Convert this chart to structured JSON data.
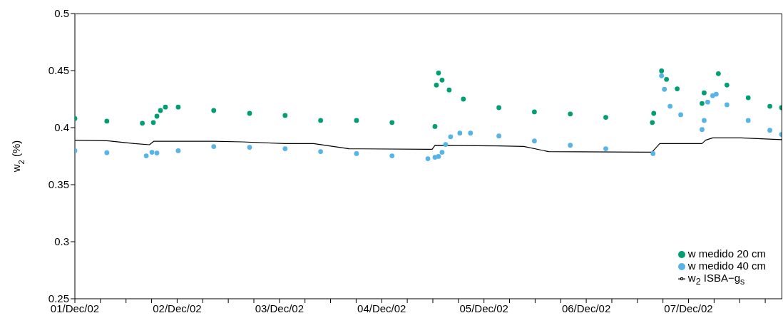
{
  "chart_data": {
    "type": "scatter",
    "ylabel": "w$_{2}$ (%)",
    "xlim": [
      "--12-01T00:00",
      "--12-07T22:00"
    ],
    "xticks": [
      {
        "value": "--12-01",
        "label": "01/Dec/02"
      },
      {
        "value": "--12-01T06:00",
        "label": null
      },
      {
        "value": "--12-01T12:00",
        "label": null
      },
      {
        "value": "--12-01T18:00",
        "label": null
      },
      {
        "value": "--12-02",
        "label": "02/Dec/02"
      },
      {
        "value": "--12-02T06:00",
        "label": null
      },
      {
        "value": "--12-02T12:00",
        "label": null
      },
      {
        "value": "--12-02T18:00",
        "label": null
      },
      {
        "value": "--12-03",
        "label": "03/Dec/02"
      },
      {
        "value": "--12-03T06:00",
        "label": null
      },
      {
        "value": "--12-03T12:00",
        "label": null
      },
      {
        "value": "--12-03T18:00",
        "label": null
      },
      {
        "value": "--12-04",
        "label": "04/Dec/02"
      },
      {
        "value": "--12-04T06:00",
        "label": null
      },
      {
        "value": "--12-04T12:00",
        "label": null
      },
      {
        "value": "--12-04T18:00",
        "label": null
      },
      {
        "value": "--12-05",
        "label": "05/Dec/02"
      },
      {
        "value": "--12-05T06:00",
        "label": null
      },
      {
        "value": "--12-05T12:00",
        "label": null
      },
      {
        "value": "--12-05T18:00",
        "label": null
      },
      {
        "value": "--12-06",
        "label": "06/Dec/02"
      },
      {
        "value": "--12-06T06:00",
        "label": null
      },
      {
        "value": "--12-06T12:00",
        "label": null
      },
      {
        "value": "--12-06T18:00",
        "label": null
      },
      {
        "value": "--12-07",
        "label": "07/Dec/02"
      },
      {
        "value": "--12-07T06:00",
        "label": null
      },
      {
        "value": "--12-07T12:00",
        "label": null
      },
      {
        "value": "--12-07T18:00",
        "label": null
      }
    ],
    "ylim": [
      0.25,
      0.5
    ],
    "yticks": [
      0.25,
      0.3,
      0.35,
      0.4,
      0.45,
      0.5
    ],
    "grid": false,
    "legend": "bottom right",
    "series": [
      {
        "name": "w$_{2}$ ISBA−g$_{s}$",
        "type": "line",
        "marker": "none",
        "line_style": "solid",
        "color": "#000000",
        "x": [
          "--12-01T00:00",
          "--12-01T07:30",
          "--12-01T14:00",
          "--12-01T17:30",
          "--12-01T18:30",
          "--12-02T08:30",
          "--12-02T15:20",
          "--12-03T01:20",
          "--12-03T08:00",
          "--12-03T16:20",
          "--12-04T10:50",
          "--12-04T11:50",
          "--12-04T12:30",
          "--12-05T03:30",
          "--12-05T09:20",
          "--12-05T15:10",
          "--12-06T12:55",
          "--12-06T15:25",
          "--12-06T17:15",
          "--12-07T03:10",
          "--12-07T04:00",
          "--12-07T05:40",
          "--12-07T12:20",
          "--12-07T21:50"
        ],
        "values": [
          0.389,
          0.3885,
          0.386,
          0.385,
          0.388,
          0.388,
          0.3875,
          0.386,
          0.386,
          0.3815,
          0.381,
          0.381,
          0.3845,
          0.384,
          0.3835,
          0.379,
          0.3785,
          0.3785,
          0.386,
          0.386,
          0.389,
          0.391,
          0.391,
          0.3895
        ]
      },
      {
        "name": "w medido 20 cm",
        "marker": "circle",
        "color": "#009e73",
        "x": [
          "--12-01T00:00",
          "--12-01T07:30",
          "--12-01T15:50",
          "--12-01T18:25",
          "--12-01T19:15",
          "--12-01T20:05",
          "--12-01T21:15",
          "--12-02T00:15",
          "--12-02T08:35",
          "--12-02T17:00",
          "--12-03T01:20",
          "--12-03T09:40",
          "--12-03T18:05",
          "--12-04T02:25",
          "--12-04T12:30",
          "--12-04T12:50",
          "--12-04T13:20",
          "--12-04T14:10",
          "--12-04T15:50",
          "--12-04T19:10",
          "--12-05T03:30",
          "--12-05T11:50",
          "--12-05T20:15",
          "--12-06T04:35",
          "--12-06T15:30",
          "--12-06T15:50",
          "--12-06T17:40",
          "--12-06T18:50",
          "--12-06T21:20",
          "--12-07T03:10",
          "--12-07T03:40",
          "--12-07T07:00",
          "--12-07T09:00",
          "--12-07T14:00",
          "--12-07T19:05",
          "--12-07T21:50"
        ],
        "values": [
          0.408,
          0.4057,
          0.4039,
          0.4045,
          0.41,
          0.415,
          0.418,
          0.418,
          0.415,
          0.4125,
          0.4107,
          0.4063,
          0.4063,
          0.4045,
          0.401,
          0.4373,
          0.4479,
          0.4417,
          0.433,
          0.425,
          0.4175,
          0.4138,
          0.412,
          0.409,
          0.4045,
          0.4125,
          0.4497,
          0.4423,
          0.434,
          0.4212,
          0.4305,
          0.4473,
          0.4373,
          0.4262,
          0.4187,
          0.4175
        ]
      },
      {
        "name": "w medido 40 cm",
        "marker": "circle",
        "color": "#56b4e9",
        "x": [
          "--12-01T00:00",
          "--12-01T07:30",
          "--12-01T16:45",
          "--12-01T18:05",
          "--12-01T19:15",
          "--12-02T00:15",
          "--12-02T08:35",
          "--12-02T17:00",
          "--12-03T01:20",
          "--12-03T09:40",
          "--12-03T18:05",
          "--12-04T02:25",
          "--12-04T10:50",
          "--12-04T12:30",
          "--12-04T13:20",
          "--12-04T14:10",
          "--12-04T15:00",
          "--12-04T16:10",
          "--12-04T18:20",
          "--12-04T20:50",
          "--12-05T03:30",
          "--12-05T11:50",
          "--12-05T20:15",
          "--12-06T04:35",
          "--12-06T15:40",
          "--12-06T17:40",
          "--12-06T18:20",
          "--12-06T19:40",
          "--12-06T22:10",
          "--12-07T03:10",
          "--12-07T03:40",
          "--12-07T04:30",
          "--12-07T05:40",
          "--12-07T06:30",
          "--12-07T09:00",
          "--12-07T14:00",
          "--12-07T19:05",
          "--12-07T21:50"
        ],
        "values": [
          0.3797,
          0.378,
          0.3753,
          0.3784,
          0.3778,
          0.3797,
          0.3834,
          0.3828,
          0.3815,
          0.379,
          0.3772,
          0.3753,
          0.3728,
          0.374,
          0.3747,
          0.3784,
          0.3853,
          0.392,
          0.3952,
          0.3952,
          0.3927,
          0.3883,
          0.3846,
          0.3815,
          0.3772,
          0.4454,
          0.4336,
          0.4187,
          0.4113,
          0.3983,
          0.4063,
          0.4224,
          0.428,
          0.4293,
          0.42,
          0.4063,
          0.3977,
          0.394
        ]
      }
    ]
  }
}
